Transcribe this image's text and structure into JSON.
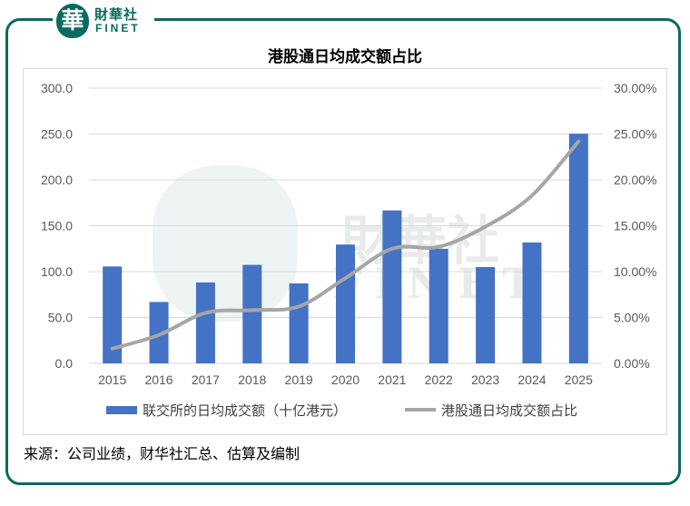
{
  "brand": {
    "seal_char": "華",
    "name_cn": "財華社",
    "name_en": "FINET",
    "color": "#0c6a5e"
  },
  "source_note": "来源：公司业绩，财华社汇总、估算及编制",
  "chart_data": {
    "type": "bar+line",
    "title": "港股通日均成交额占比",
    "categories": [
      "2015",
      "2016",
      "2017",
      "2018",
      "2019",
      "2020",
      "2021",
      "2022",
      "2023",
      "2024",
      "2025"
    ],
    "series": [
      {
        "name": "联交所的日均成交额（十亿港元）",
        "type": "bar",
        "axis": "left",
        "color": "#4472c4",
        "values": [
          105.6,
          66.9,
          88.2,
          107.4,
          87.2,
          129.5,
          166.7,
          124.9,
          105.0,
          131.8,
          250.3
        ]
      },
      {
        "name": "港股通日均成交额占比",
        "type": "line",
        "axis": "right",
        "color": "#a6a6a6",
        "values": [
          0.016,
          0.031,
          0.055,
          0.058,
          0.062,
          0.093,
          0.125,
          0.127,
          0.149,
          0.183,
          0.242
        ]
      }
    ],
    "y_left": {
      "min": 0,
      "max": 300,
      "step": 50,
      "ticks": [
        "300.0",
        "250.0",
        "200.0",
        "150.0",
        "100.0",
        "50.0",
        "0.0"
      ]
    },
    "y_right": {
      "min": 0,
      "max": 0.3,
      "step": 0.05,
      "ticks": [
        "30.00%",
        "25.00%",
        "20.00%",
        "15.00%",
        "10.00%",
        "5.00%",
        "0.00%"
      ]
    },
    "grid": true,
    "legend_position": "bottom"
  }
}
